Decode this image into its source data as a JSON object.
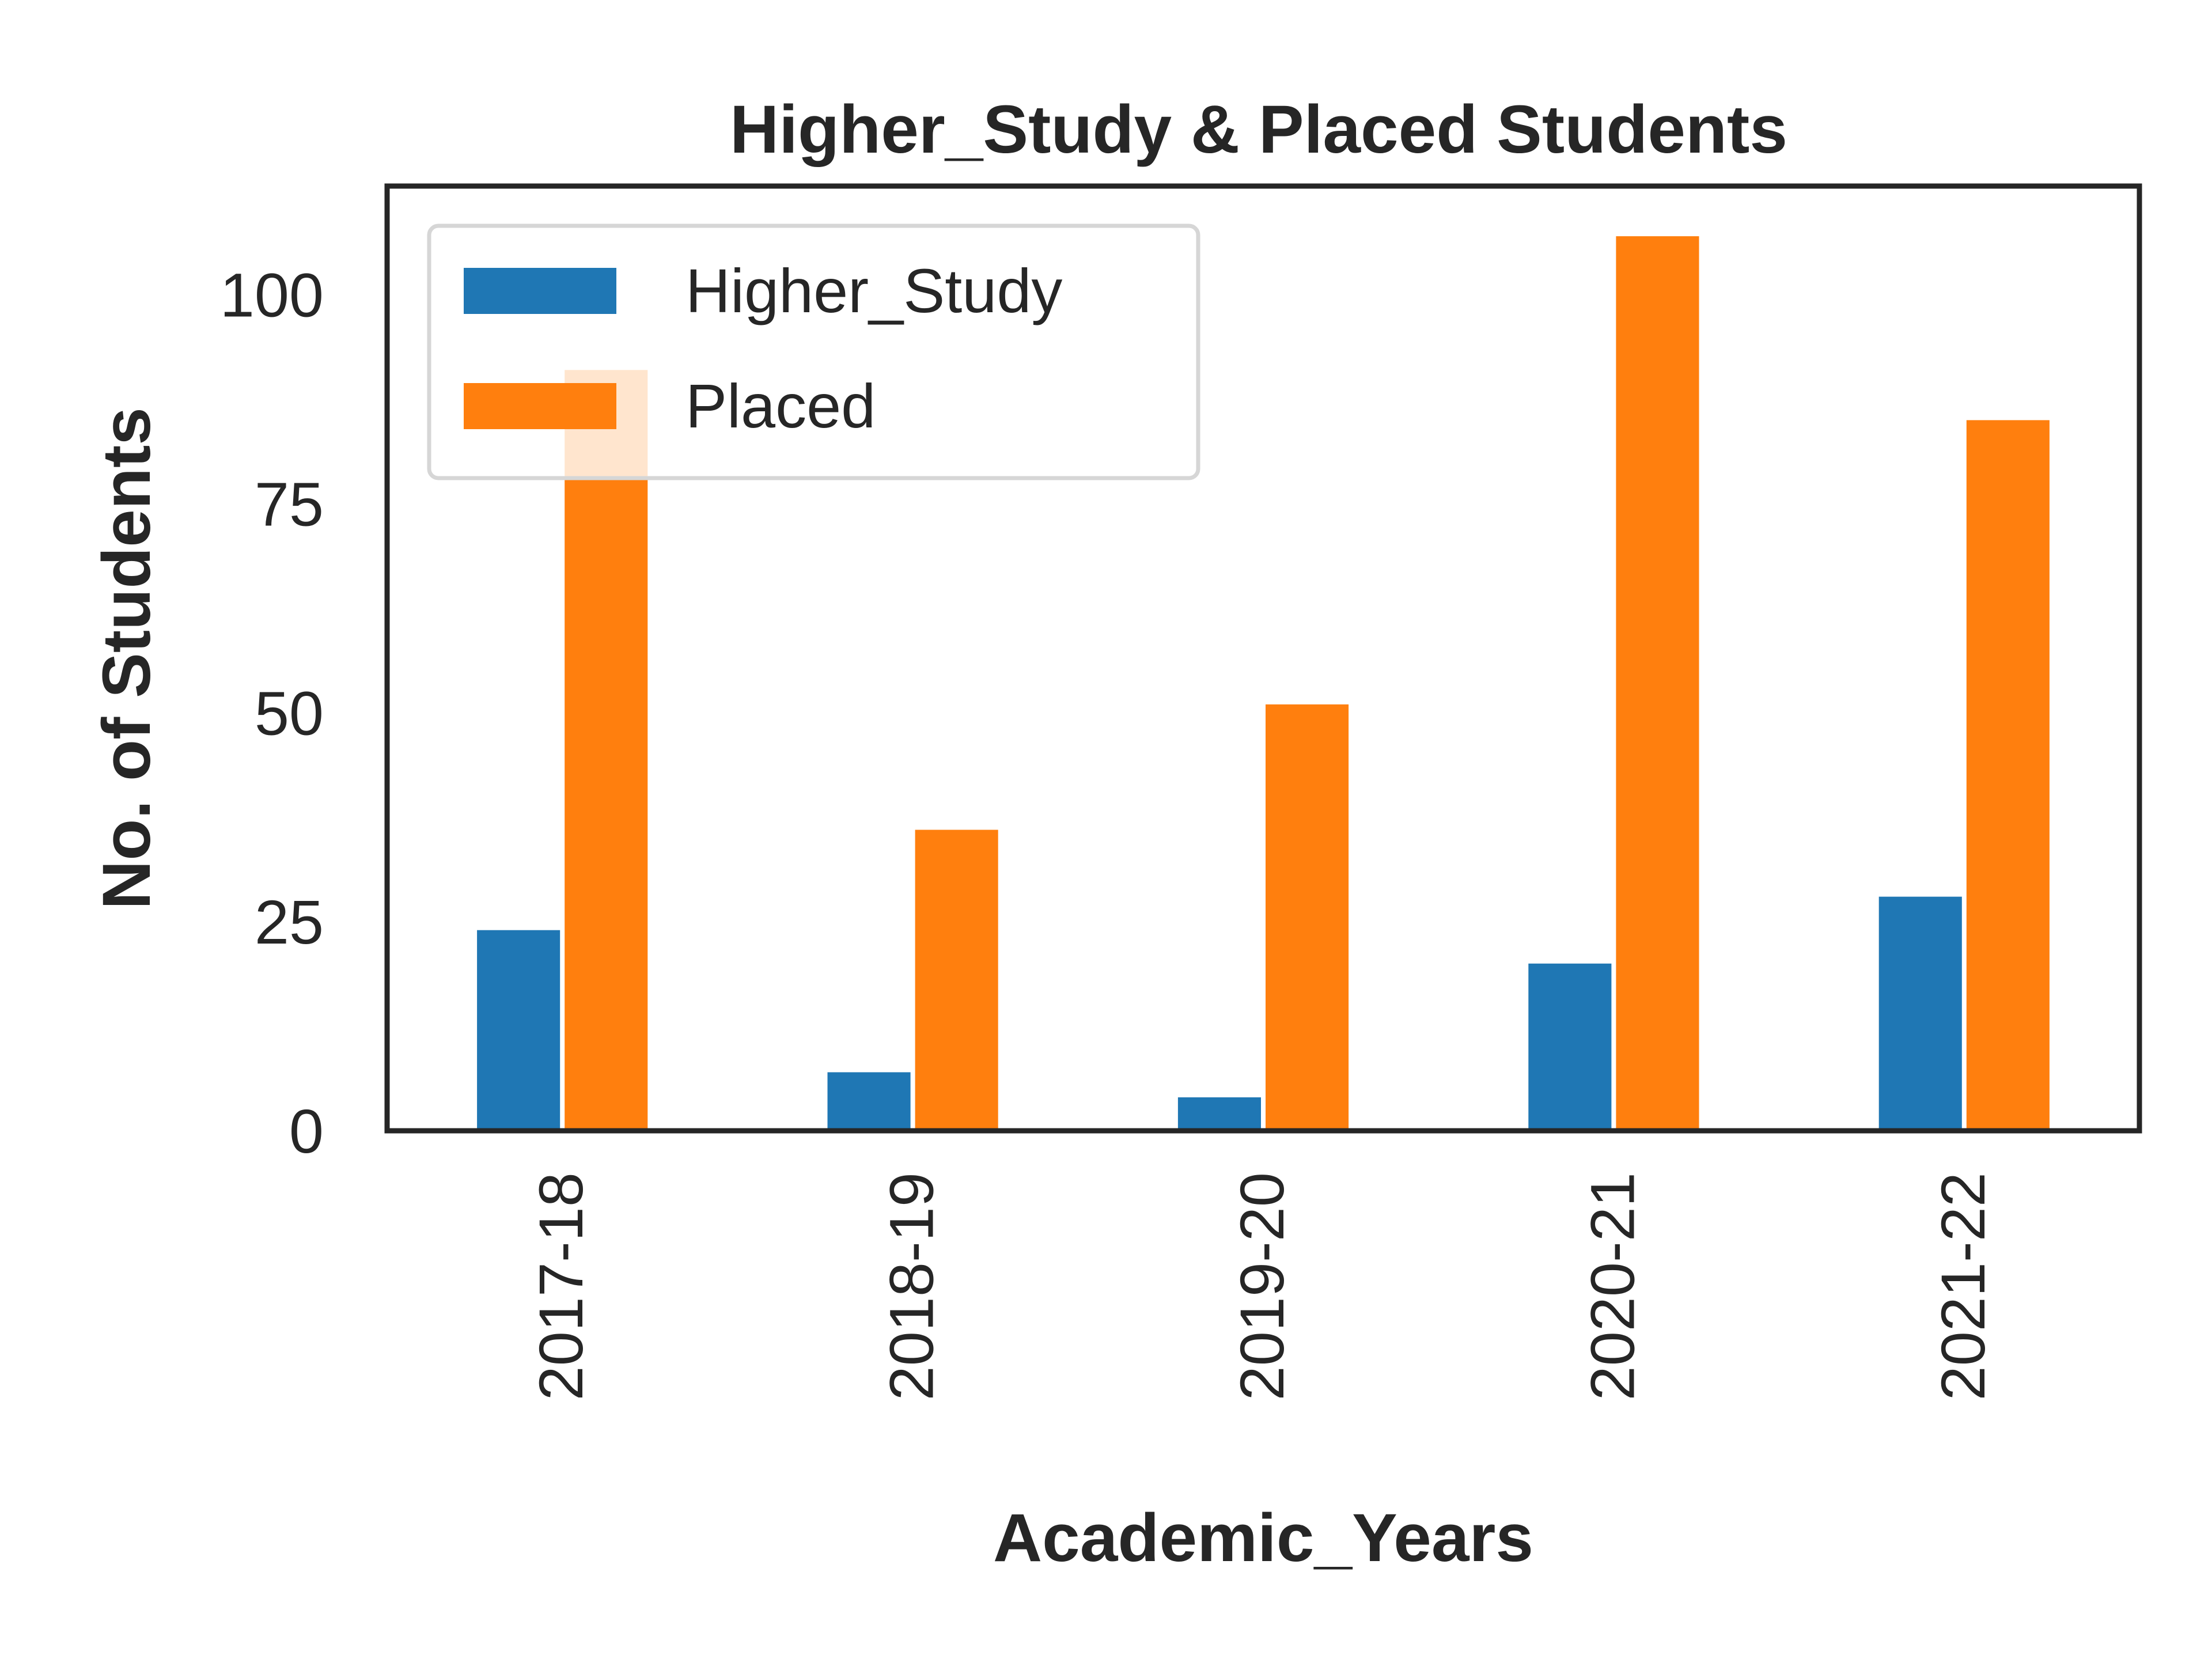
{
  "chart_data": {
    "type": "bar",
    "title": "Higher_Study & Placed Students",
    "xlabel": "Academic_Years",
    "ylabel": "No. of Students",
    "categories": [
      "2017-18",
      "2018-19",
      "2019-20",
      "2020-21",
      "2021-22"
    ],
    "series": [
      {
        "name": "Higher_Study",
        "color": "#1f77b4",
        "values": [
          24,
          7,
          4,
          20,
          28
        ]
      },
      {
        "name": "Placed",
        "color": "#ff7f0e",
        "values": [
          91,
          36,
          51,
          107,
          85
        ]
      }
    ],
    "ylim": [
      0,
      113
    ],
    "yticks": [
      "0",
      "25",
      "50",
      "75",
      "100"
    ],
    "grid": false,
    "legend_position": "top-left"
  }
}
